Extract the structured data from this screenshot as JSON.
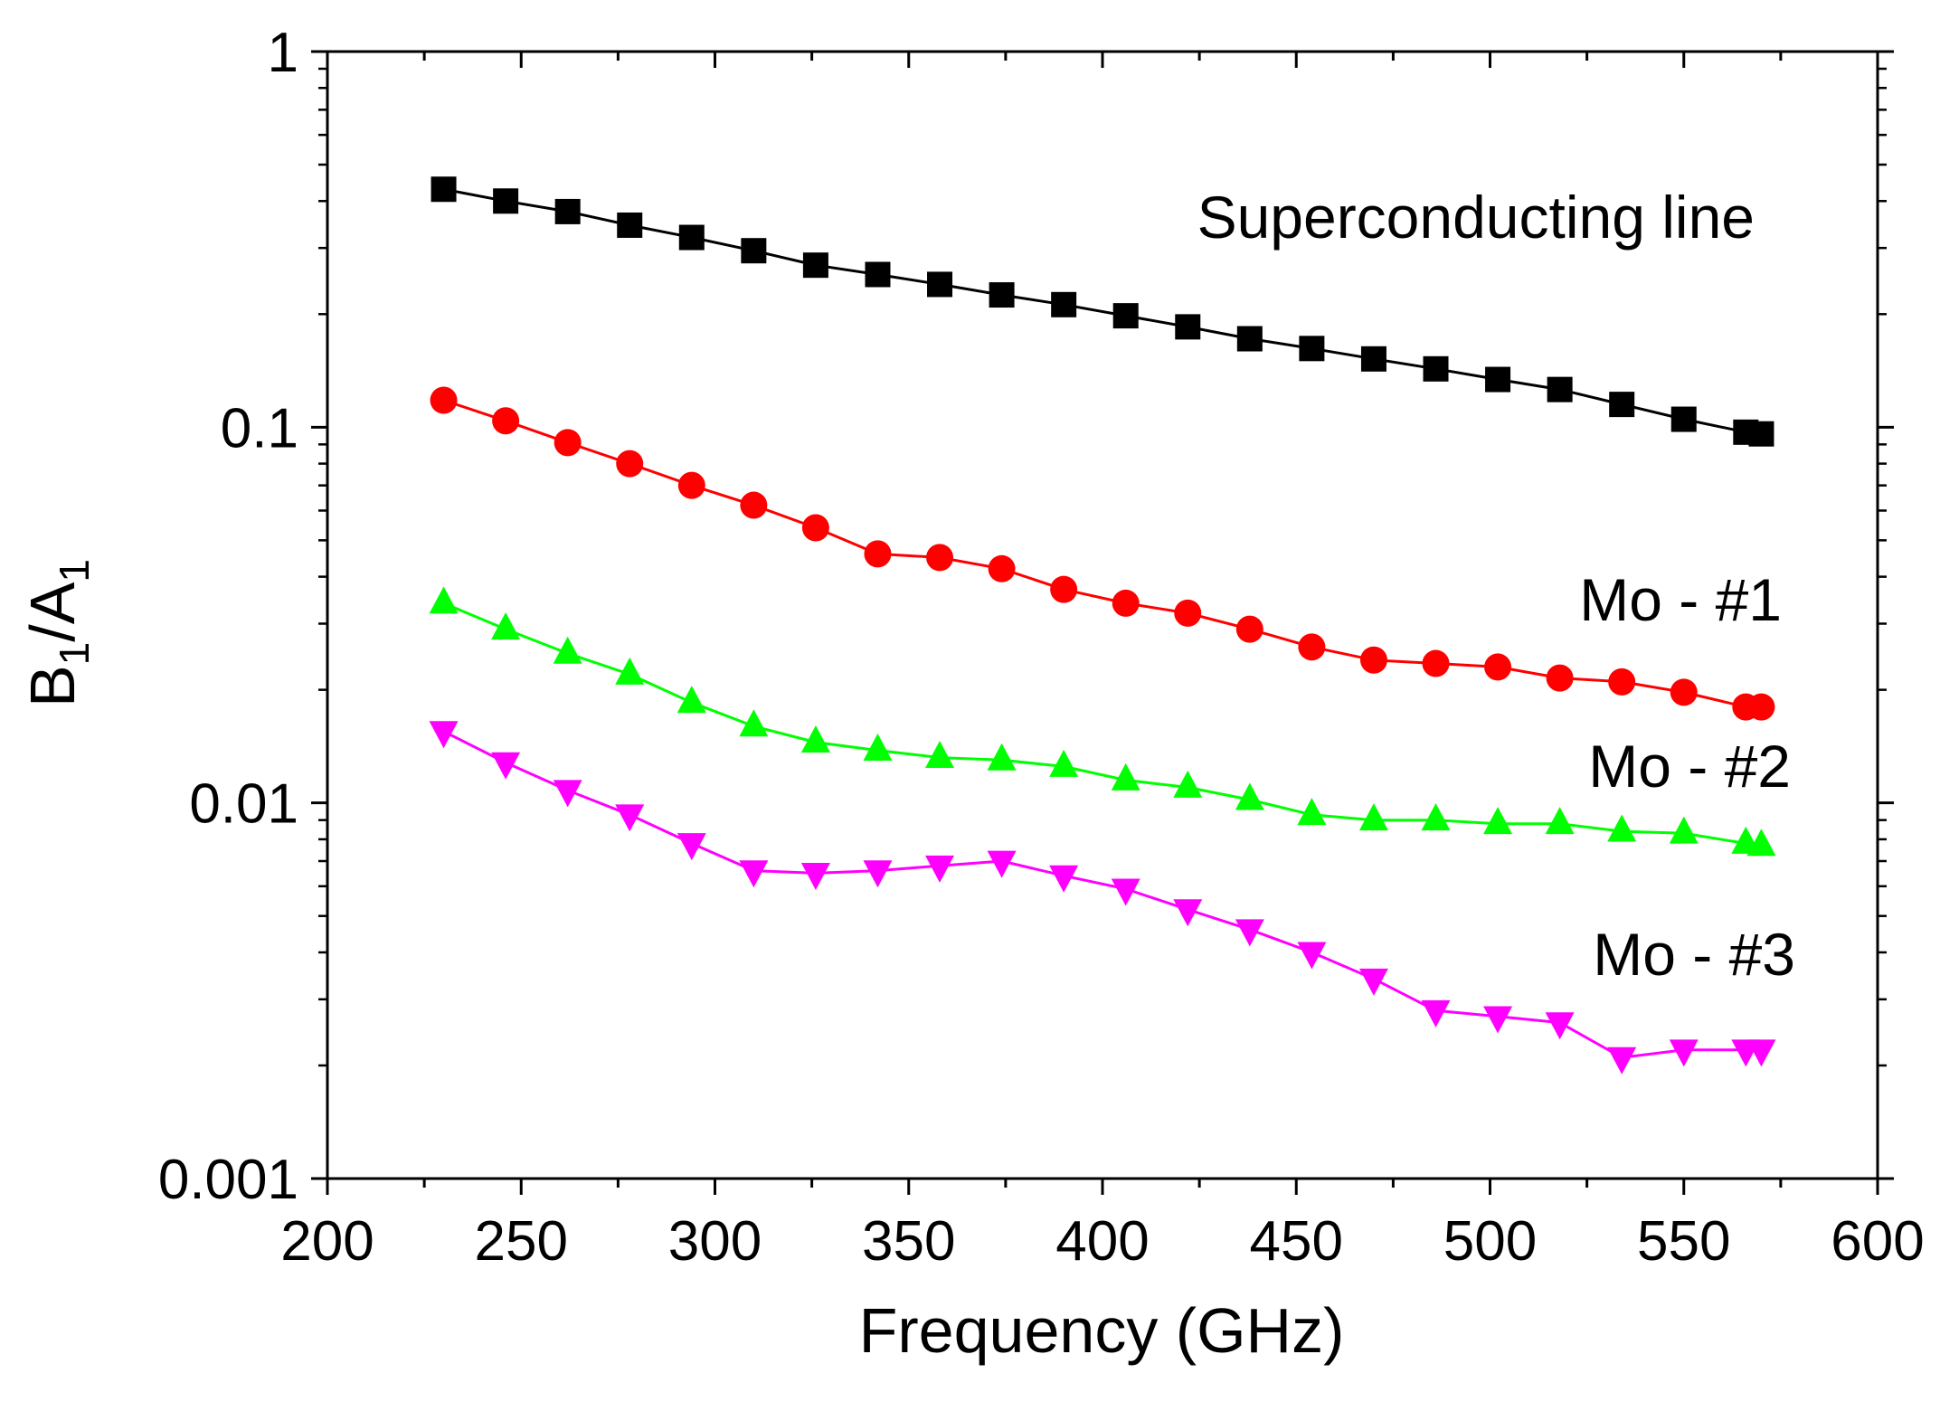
{
  "chart_data": {
    "type": "line",
    "title": "",
    "xlabel": "Frequency (GHz)",
    "ylabel": {
      "base": "B",
      "sub1": "1",
      "mid": "/A",
      "sub2": "1"
    },
    "xlim": [
      200,
      600
    ],
    "ylim": [
      0.001,
      1
    ],
    "yscale": "log",
    "grid": false,
    "x_ticks": [
      200,
      250,
      300,
      350,
      400,
      450,
      500,
      550,
      600
    ],
    "x_tick_labels": [
      "200",
      "250",
      "300",
      "350",
      "400",
      "450",
      "500",
      "550",
      "600"
    ],
    "y_ticks": [
      0.001,
      0.01,
      0.1,
      1
    ],
    "y_tick_labels": [
      "0.001",
      "0.01",
      "0.1",
      "1"
    ],
    "x": [
      230,
      246,
      262,
      278,
      294,
      310,
      326,
      342,
      358,
      374,
      390,
      406,
      422,
      438,
      454,
      470,
      486,
      502,
      518,
      534,
      550,
      566,
      570
    ],
    "series": [
      {
        "name": "Superconducting line",
        "color": "#000000",
        "marker": "square",
        "values": [
          0.43,
          0.4,
          0.375,
          0.345,
          0.32,
          0.295,
          0.27,
          0.255,
          0.24,
          0.225,
          0.212,
          0.198,
          0.185,
          0.172,
          0.162,
          0.152,
          0.143,
          0.134,
          0.126,
          0.115,
          0.105,
          0.097,
          0.096
        ]
      },
      {
        "name": "Mo - #1",
        "color": "#ff0000",
        "marker": "circle",
        "values": [
          0.118,
          0.104,
          0.091,
          0.08,
          0.07,
          0.062,
          0.054,
          0.046,
          0.045,
          0.042,
          0.037,
          0.034,
          0.032,
          0.029,
          0.026,
          0.024,
          0.0235,
          0.023,
          0.0215,
          0.021,
          0.0197,
          0.018,
          0.018
        ]
      },
      {
        "name": "Mo - #2",
        "color": "#00ff00",
        "marker": "triangle-up",
        "values": [
          0.034,
          0.029,
          0.025,
          0.022,
          0.0185,
          0.016,
          0.0145,
          0.0138,
          0.0132,
          0.013,
          0.0125,
          0.0115,
          0.011,
          0.0102,
          0.0093,
          0.009,
          0.009,
          0.0088,
          0.0088,
          0.0084,
          0.0083,
          0.0078,
          0.0077
        ]
      },
      {
        "name": "Mo - #3",
        "color": "#ff00ff",
        "marker": "triangle-down",
        "values": [
          0.0155,
          0.0128,
          0.0108,
          0.0093,
          0.0078,
          0.0066,
          0.0065,
          0.0066,
          0.0068,
          0.007,
          0.0064,
          0.0059,
          0.0052,
          0.0046,
          0.004,
          0.0034,
          0.0028,
          0.0027,
          0.0026,
          0.0021,
          0.0022,
          0.0022,
          0.0022
        ]
      }
    ],
    "annotations": [
      "Superconducting line",
      "Mo - #1",
      "Mo - #2",
      "Mo - #3"
    ]
  }
}
